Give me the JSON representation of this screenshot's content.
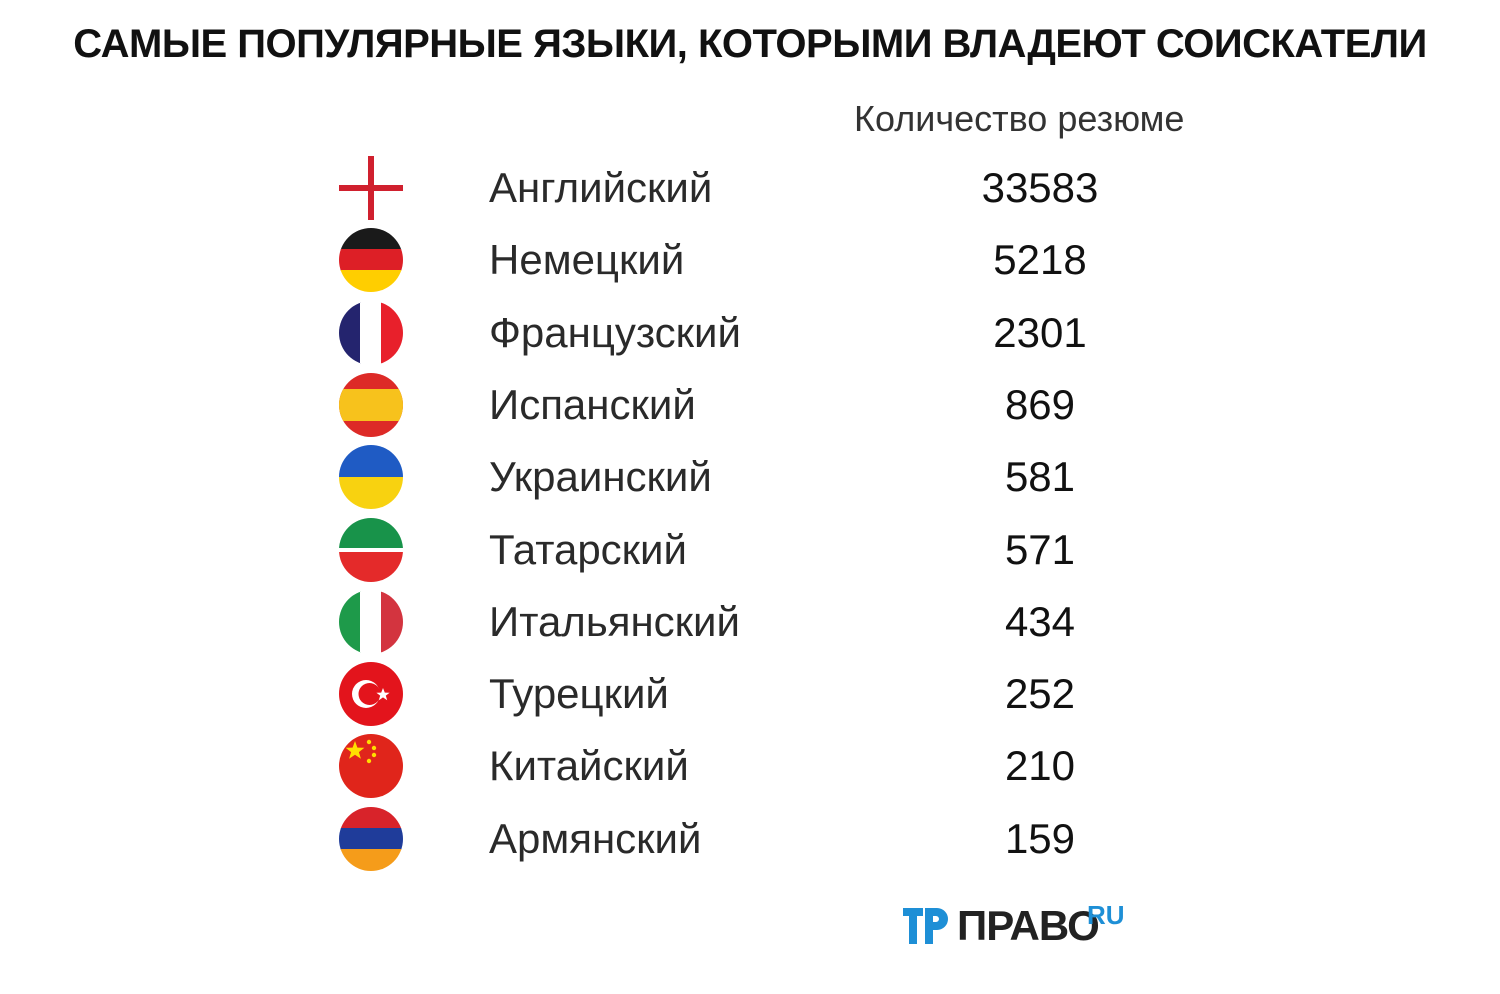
{
  "chart_data": {
    "type": "table",
    "title": "САМЫЕ ПОПУЛЯРНЫЕ ЯЗЫКИ, КОТОРЫМИ ВЛАДЕЮТ СОИСКАТЕЛИ",
    "value_header": "Количество резюме",
    "rows": [
      {
        "label": "Английский",
        "value": "33583",
        "flag": "england-flag-icon"
      },
      {
        "label": "Немецкий",
        "value": "5218",
        "flag": "germany-flag-icon"
      },
      {
        "label": "Французский",
        "value": "2301",
        "flag": "france-flag-icon"
      },
      {
        "label": "Испанский",
        "value": "869",
        "flag": "spain-flag-icon"
      },
      {
        "label": "Украинский",
        "value": "581",
        "flag": "ukraine-flag-icon"
      },
      {
        "label": "Татарский",
        "value": "571",
        "flag": "tatarstan-flag-icon"
      },
      {
        "label": "Итальянский",
        "value": "434",
        "flag": "italy-flag-icon"
      },
      {
        "label": "Турецкий",
        "value": "252",
        "flag": "turkey-flag-icon"
      },
      {
        "label": "Китайский",
        "value": "210",
        "flag": "china-flag-icon"
      },
      {
        "label": "Армянский",
        "value": "159",
        "flag": "armenia-flag-icon"
      }
    ]
  },
  "logo": {
    "main": "ПРАВО",
    "suffix": "RU"
  },
  "colors": {
    "brand_blue": "#1e8fd6",
    "text": "#111111"
  }
}
